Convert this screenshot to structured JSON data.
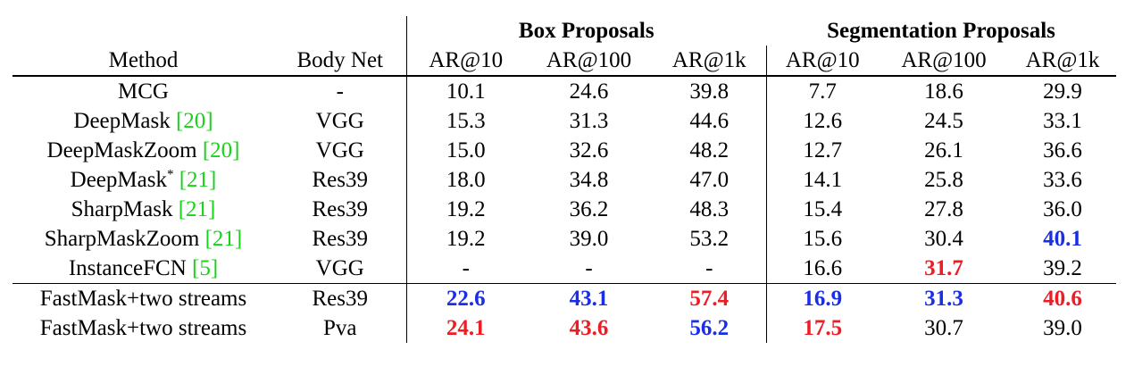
{
  "header": {
    "group_box": "Box Proposals",
    "group_seg": "Segmentation Proposals",
    "method": "Method",
    "body_net": "Body Net",
    "box_ar10": "AR@10",
    "box_ar100": "AR@100",
    "box_ar1k": "AR@1k",
    "seg_ar10": "AR@10",
    "seg_ar100": "AR@100",
    "seg_ar1k": "AR@1k"
  },
  "highlight_colors": {
    "best": "#ee1c24",
    "second": "#1a2ee6",
    "citation": "#17d317"
  },
  "rows": [
    {
      "method": "MCG",
      "cite": "",
      "sup": "",
      "net": "-",
      "vals": [
        "10.1",
        "24.6",
        "39.8",
        "7.7",
        "18.6",
        "29.9"
      ],
      "hl": [
        "",
        "",
        "",
        "",
        "",
        ""
      ]
    },
    {
      "method": "DeepMask ",
      "cite": "[20]",
      "sup": "",
      "net": "VGG",
      "vals": [
        "15.3",
        "31.3",
        "44.6",
        "12.6",
        "24.5",
        "33.1"
      ],
      "hl": [
        "",
        "",
        "",
        "",
        "",
        ""
      ]
    },
    {
      "method": "DeepMaskZoom ",
      "cite": "[20]",
      "sup": "",
      "net": "VGG",
      "vals": [
        "15.0",
        "32.6",
        "48.2",
        "12.7",
        "26.1",
        "36.6"
      ],
      "hl": [
        "",
        "",
        "",
        "",
        "",
        ""
      ]
    },
    {
      "method": "DeepMask",
      "cite": "[21]",
      "sup": "*",
      "net": "Res39",
      "vals": [
        "18.0",
        "34.8",
        "47.0",
        "14.1",
        "25.8",
        "33.6"
      ],
      "hl": [
        "",
        "",
        "",
        "",
        "",
        ""
      ]
    },
    {
      "method": "SharpMask ",
      "cite": "[21]",
      "sup": "",
      "net": "Res39",
      "vals": [
        "19.2",
        "36.2",
        "48.3",
        "15.4",
        "27.8",
        "36.0"
      ],
      "hl": [
        "",
        "",
        "",
        "",
        "",
        ""
      ]
    },
    {
      "method": "SharpMaskZoom ",
      "cite": "[21]",
      "sup": "",
      "net": "Res39",
      "vals": [
        "19.2",
        "39.0",
        "53.2",
        "15.6",
        "30.4",
        "40.1"
      ],
      "hl": [
        "",
        "",
        "",
        "",
        "",
        "blue"
      ]
    },
    {
      "method": "InstanceFCN ",
      "cite": "[5]",
      "sup": "",
      "net": "VGG",
      "vals": [
        "-",
        "-",
        "-",
        "16.6",
        "31.7",
        "39.2"
      ],
      "hl": [
        "",
        "",
        "",
        "",
        "red",
        ""
      ]
    },
    {
      "method": "FastMask+two streams",
      "cite": "",
      "sup": "",
      "net": "Res39",
      "vals": [
        "22.6",
        "43.1",
        "57.4",
        "16.9",
        "31.3",
        "40.6"
      ],
      "hl": [
        "blue",
        "blue",
        "red",
        "blue",
        "blue",
        "red"
      ]
    },
    {
      "method": "FastMask+two streams",
      "cite": "",
      "sup": "",
      "net": "Pva",
      "vals": [
        "24.1",
        "43.6",
        "56.2",
        "17.5",
        "30.7",
        "39.0"
      ],
      "hl": [
        "red",
        "red",
        "blue",
        "red",
        "",
        ""
      ]
    }
  ]
}
